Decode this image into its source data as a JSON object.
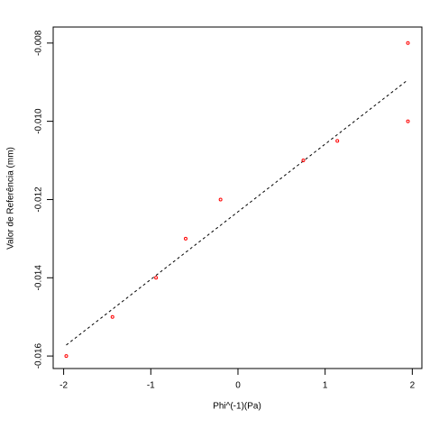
{
  "chart_data": {
    "type": "scatter",
    "x_label": "Phi^(-1)(Pa)",
    "y_label": "Valor de Referência (mm)",
    "series": [
      {
        "color": "#ff0000",
        "x": [
          -1.97,
          -1.44,
          -0.94,
          -0.6,
          -0.2,
          0.75,
          1.14,
          1.95,
          1.95
        ],
        "values": [
          -0.016,
          -0.015,
          -0.014,
          -0.013,
          -0.012,
          -0.011,
          -0.0105,
          -0.01,
          -0.008
        ]
      }
    ],
    "reference_line": {
      "x": [
        -1.97,
        1.95
      ],
      "values": [
        -0.01572,
        -0.00894
      ]
    },
    "xlim": [
      -2.12,
      2.11
    ],
    "ylim": [
      -0.01632,
      -0.00759
    ],
    "xticks": [
      -2,
      -1,
      0,
      1,
      2
    ],
    "yticks": [
      -0.016,
      -0.014,
      -0.012,
      {
        "value": -0.01,
        "label": "-0.010"
      },
      -0.008
    ]
  }
}
